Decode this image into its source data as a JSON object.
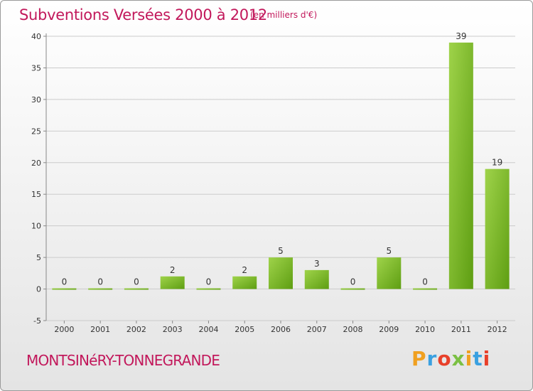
{
  "header": {
    "title": "Subventions Versées 2000 à 2012",
    "unit": "(en milliers d'€)"
  },
  "footer": {
    "commune": "MONTSINéRY-TONNEGRANDE",
    "logo_letters": [
      "P",
      "r",
      "o",
      "x",
      "i",
      "t",
      "i"
    ],
    "logo_colors": [
      "#f0a020",
      "#3aa0e0",
      "#e8402a",
      "#7bc043",
      "#f0a020",
      "#3aa0e0",
      "#e8402a"
    ]
  },
  "colors": {
    "bar_light": "#9fd34a",
    "bar_dark": "#5e9e12",
    "grid": "#cccccc",
    "axis": "#888888",
    "title": "#c2185b"
  },
  "chart_data": {
    "type": "bar",
    "categories": [
      "2000",
      "2001",
      "2002",
      "2003",
      "2004",
      "2005",
      "2006",
      "2007",
      "2008",
      "2009",
      "2010",
      "2011",
      "2012"
    ],
    "values": [
      0,
      0,
      0,
      2,
      0,
      2,
      5,
      3,
      0,
      5,
      0,
      39,
      19
    ],
    "ylim": [
      -5,
      40
    ],
    "yticks": [
      -5,
      0,
      5,
      10,
      15,
      20,
      25,
      30,
      35,
      40
    ],
    "grid": "horizontal",
    "xlabel": "",
    "ylabel": ""
  }
}
